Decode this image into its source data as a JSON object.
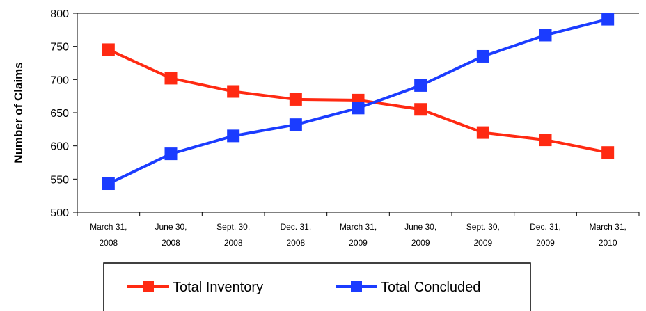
{
  "chart_data": {
    "type": "line",
    "title": "",
    "xlabel": "",
    "ylabel": "Number of Claims",
    "ylim": [
      500,
      800
    ],
    "yticks": [
      "500",
      "550",
      "600",
      "650",
      "700",
      "750",
      "800"
    ],
    "categories": [
      [
        "March 31,",
        "2008"
      ],
      [
        "June 30,",
        "2008"
      ],
      [
        "Sept. 30,",
        "2008"
      ],
      [
        "Dec. 31,",
        "2008"
      ],
      [
        "March 31,",
        "2009"
      ],
      [
        "June 30,",
        "2009"
      ],
      [
        "Sept. 30,",
        "2009"
      ],
      [
        "Dec. 31,",
        "2009"
      ],
      [
        "March 31,",
        "2010"
      ]
    ],
    "series": [
      {
        "name": "Total Inventory",
        "color": "#ff2a12",
        "values": [
          745,
          702,
          682,
          670,
          669,
          655,
          620,
          609,
          590
        ]
      },
      {
        "name": "Total Concluded",
        "color": "#1b3cff",
        "values": [
          543,
          588,
          615,
          632,
          657,
          691,
          735,
          767,
          791
        ]
      }
    ],
    "grid": false,
    "legend": "bottom"
  }
}
